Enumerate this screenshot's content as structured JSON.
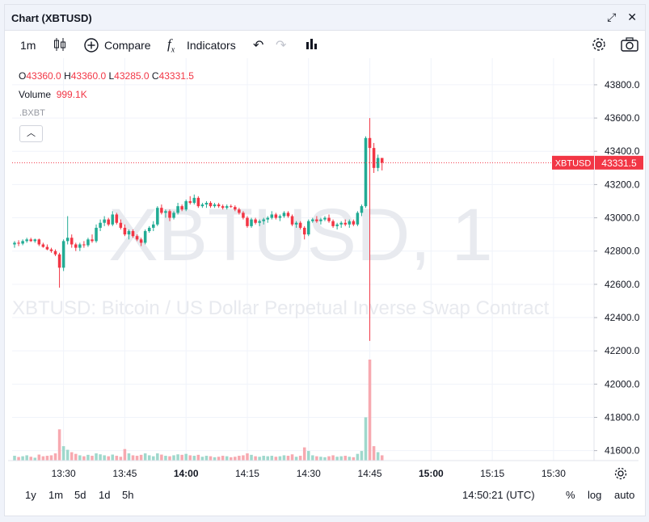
{
  "window": {
    "title": "Chart (XBTUSD)"
  },
  "toolbar": {
    "interval": "1m",
    "compare_label": "Compare",
    "indicators_label": "Indicators"
  },
  "legend": {
    "o_label": "O",
    "o_value": "43360.0",
    "h_label": "H",
    "h_value": "43360.0",
    "l_label": "L",
    "l_value": "43285.0",
    "c_label": "C",
    "c_value": "43331.5",
    "volume_label": "Volume",
    "volume_value": "999.1K",
    "exchange": ".BXBT"
  },
  "watermark": {
    "symbol": "XBTUSD, 1",
    "description": "XBTUSD: Bitcoin / US Dollar Perpetual Inverse Swap Contract"
  },
  "price_tag": {
    "symbol": "XBTUSD",
    "price": "43331.5",
    "value": 43331.5
  },
  "bottom": {
    "ranges": [
      "1y",
      "1m",
      "5d",
      "1d",
      "5h"
    ],
    "clock": "14:50:21 (UTC)",
    "percent": "%",
    "log": "log",
    "auto": "auto"
  },
  "colors": {
    "up": "#22ab94",
    "down": "#f23645",
    "up_vol": "#9fd8cc",
    "down_vol": "#f7a9b0",
    "accent": "#f23645"
  },
  "chart_data": {
    "type": "candlestick",
    "y_ticks": [
      41600,
      41800,
      42000,
      42200,
      42400,
      42600,
      42800,
      43000,
      43200,
      43400,
      43600,
      43800
    ],
    "y_tick_labels": [
      "41600.0",
      "41800.0",
      "42000.0",
      "42200.0",
      "42400.0",
      "42600.0",
      "42800.0",
      "43000.0",
      "43200.0",
      "43400.0",
      "43600.0",
      "43800.0"
    ],
    "ylim": [
      41540,
      43960
    ],
    "x_ticks": [
      "13:30",
      "13:45",
      "14:00",
      "14:15",
      "14:30",
      "14:45",
      "15:00",
      "15:15",
      "15:30"
    ],
    "x_tick_minutes": [
      810,
      825,
      840,
      855,
      870,
      885,
      900,
      915,
      930
    ],
    "xlim_minutes": [
      798,
      932
    ],
    "candles": [
      {
        "t": 798,
        "o": 42840,
        "h": 42860,
        "l": 42820,
        "c": 42850,
        "v": 20
      },
      {
        "t": 799,
        "o": 42850,
        "h": 42865,
        "l": 42830,
        "c": 42845,
        "v": 15
      },
      {
        "t": 800,
        "o": 42845,
        "h": 42870,
        "l": 42835,
        "c": 42860,
        "v": 18
      },
      {
        "t": 801,
        "o": 42860,
        "h": 42880,
        "l": 42850,
        "c": 42870,
        "v": 22
      },
      {
        "t": 802,
        "o": 42870,
        "h": 42880,
        "l": 42855,
        "c": 42860,
        "v": 16
      },
      {
        "t": 803,
        "o": 42860,
        "h": 42875,
        "l": 42850,
        "c": 42870,
        "v": 12
      },
      {
        "t": 804,
        "o": 42870,
        "h": 42875,
        "l": 42830,
        "c": 42840,
        "v": 25
      },
      {
        "t": 805,
        "o": 42840,
        "h": 42850,
        "l": 42820,
        "c": 42825,
        "v": 18
      },
      {
        "t": 806,
        "o": 42825,
        "h": 42840,
        "l": 42805,
        "c": 42810,
        "v": 20
      },
      {
        "t": 807,
        "o": 42810,
        "h": 42820,
        "l": 42790,
        "c": 42800,
        "v": 22
      },
      {
        "t": 808,
        "o": 42800,
        "h": 42810,
        "l": 42770,
        "c": 42780,
        "v": 30
      },
      {
        "t": 809,
        "o": 42780,
        "h": 42790,
        "l": 42580,
        "c": 42700,
        "v": 130
      },
      {
        "t": 810,
        "o": 42700,
        "h": 42870,
        "l": 42680,
        "c": 42860,
        "v": 60
      },
      {
        "t": 811,
        "o": 42860,
        "h": 43010,
        "l": 42840,
        "c": 42880,
        "v": 45
      },
      {
        "t": 812,
        "o": 42880,
        "h": 42900,
        "l": 42820,
        "c": 42840,
        "v": 35
      },
      {
        "t": 813,
        "o": 42840,
        "h": 42850,
        "l": 42800,
        "c": 42820,
        "v": 28
      },
      {
        "t": 814,
        "o": 42820,
        "h": 42850,
        "l": 42800,
        "c": 42840,
        "v": 22
      },
      {
        "t": 815,
        "o": 42840,
        "h": 42860,
        "l": 42820,
        "c": 42835,
        "v": 18
      },
      {
        "t": 816,
        "o": 42835,
        "h": 42880,
        "l": 42825,
        "c": 42870,
        "v": 24
      },
      {
        "t": 817,
        "o": 42870,
        "h": 42900,
        "l": 42850,
        "c": 42860,
        "v": 20
      },
      {
        "t": 818,
        "o": 42860,
        "h": 42960,
        "l": 42850,
        "c": 42940,
        "v": 30
      },
      {
        "t": 819,
        "o": 42940,
        "h": 42990,
        "l": 42920,
        "c": 42970,
        "v": 26
      },
      {
        "t": 820,
        "o": 42970,
        "h": 43010,
        "l": 42950,
        "c": 42990,
        "v": 22
      },
      {
        "t": 821,
        "o": 42990,
        "h": 43000,
        "l": 42950,
        "c": 42960,
        "v": 18
      },
      {
        "t": 822,
        "o": 42960,
        "h": 43040,
        "l": 42950,
        "c": 43020,
        "v": 25
      },
      {
        "t": 823,
        "o": 43020,
        "h": 43030,
        "l": 42960,
        "c": 42970,
        "v": 20
      },
      {
        "t": 824,
        "o": 42970,
        "h": 42990,
        "l": 42930,
        "c": 42940,
        "v": 16
      },
      {
        "t": 825,
        "o": 42940,
        "h": 42960,
        "l": 42890,
        "c": 42900,
        "v": 48
      },
      {
        "t": 826,
        "o": 42900,
        "h": 42930,
        "l": 42870,
        "c": 42920,
        "v": 30
      },
      {
        "t": 827,
        "o": 42920,
        "h": 42930,
        "l": 42880,
        "c": 42890,
        "v": 22
      },
      {
        "t": 828,
        "o": 42890,
        "h": 42900,
        "l": 42860,
        "c": 42870,
        "v": 20
      },
      {
        "t": 829,
        "o": 42870,
        "h": 42880,
        "l": 42830,
        "c": 42850,
        "v": 24
      },
      {
        "t": 830,
        "o": 42850,
        "h": 42930,
        "l": 42840,
        "c": 42920,
        "v": 30
      },
      {
        "t": 831,
        "o": 42920,
        "h": 42950,
        "l": 42910,
        "c": 42940,
        "v": 22
      },
      {
        "t": 832,
        "o": 42940,
        "h": 42980,
        "l": 42920,
        "c": 42960,
        "v": 18
      },
      {
        "t": 833,
        "o": 42960,
        "h": 43070,
        "l": 42950,
        "c": 43060,
        "v": 30
      },
      {
        "t": 834,
        "o": 43060,
        "h": 43080,
        "l": 43020,
        "c": 43030,
        "v": 25
      },
      {
        "t": 835,
        "o": 43030,
        "h": 43050,
        "l": 43000,
        "c": 43040,
        "v": 20
      },
      {
        "t": 836,
        "o": 43040,
        "h": 43050,
        "l": 42980,
        "c": 43000,
        "v": 18
      },
      {
        "t": 837,
        "o": 43000,
        "h": 43040,
        "l": 42990,
        "c": 43030,
        "v": 22
      },
      {
        "t": 838,
        "o": 43030,
        "h": 43090,
        "l": 43020,
        "c": 43070,
        "v": 26
      },
      {
        "t": 839,
        "o": 43070,
        "h": 43080,
        "l": 43040,
        "c": 43050,
        "v": 24
      },
      {
        "t": 840,
        "o": 43050,
        "h": 43110,
        "l": 43040,
        "c": 43100,
        "v": 28
      },
      {
        "t": 841,
        "o": 43100,
        "h": 43130,
        "l": 43080,
        "c": 43090,
        "v": 22
      },
      {
        "t": 842,
        "o": 43090,
        "h": 43140,
        "l": 43080,
        "c": 43120,
        "v": 20
      },
      {
        "t": 843,
        "o": 43120,
        "h": 43130,
        "l": 43060,
        "c": 43070,
        "v": 24
      },
      {
        "t": 844,
        "o": 43070,
        "h": 43090,
        "l": 43060,
        "c": 43080,
        "v": 16
      },
      {
        "t": 845,
        "o": 43080,
        "h": 43100,
        "l": 43060,
        "c": 43090,
        "v": 20
      },
      {
        "t": 846,
        "o": 43090,
        "h": 43100,
        "l": 43060,
        "c": 43070,
        "v": 18
      },
      {
        "t": 847,
        "o": 43070,
        "h": 43090,
        "l": 43060,
        "c": 43080,
        "v": 14
      },
      {
        "t": 848,
        "o": 43080,
        "h": 43090,
        "l": 43060,
        "c": 43070,
        "v": 16
      },
      {
        "t": 849,
        "o": 43070,
        "h": 43080,
        "l": 43050,
        "c": 43060,
        "v": 20
      },
      {
        "t": 850,
        "o": 43060,
        "h": 43080,
        "l": 43050,
        "c": 43070,
        "v": 18
      },
      {
        "t": 851,
        "o": 43070,
        "h": 43080,
        "l": 43060,
        "c": 43065,
        "v": 14
      },
      {
        "t": 852,
        "o": 43065,
        "h": 43075,
        "l": 43040,
        "c": 43050,
        "v": 16
      },
      {
        "t": 853,
        "o": 43050,
        "h": 43060,
        "l": 43020,
        "c": 43030,
        "v": 20
      },
      {
        "t": 854,
        "o": 43030,
        "h": 43040,
        "l": 42990,
        "c": 43000,
        "v": 22
      },
      {
        "t": 855,
        "o": 43000,
        "h": 43010,
        "l": 42940,
        "c": 42950,
        "v": 30
      },
      {
        "t": 856,
        "o": 42950,
        "h": 43000,
        "l": 42940,
        "c": 42990,
        "v": 24
      },
      {
        "t": 857,
        "o": 42990,
        "h": 43000,
        "l": 42960,
        "c": 42970,
        "v": 18
      },
      {
        "t": 858,
        "o": 42970,
        "h": 42990,
        "l": 42950,
        "c": 42980,
        "v": 16
      },
      {
        "t": 859,
        "o": 42980,
        "h": 43000,
        "l": 42960,
        "c": 42990,
        "v": 20
      },
      {
        "t": 860,
        "o": 42990,
        "h": 43010,
        "l": 42970,
        "c": 43000,
        "v": 18
      },
      {
        "t": 861,
        "o": 43000,
        "h": 43040,
        "l": 42990,
        "c": 43020,
        "v": 20
      },
      {
        "t": 862,
        "o": 43020,
        "h": 43030,
        "l": 42990,
        "c": 43000,
        "v": 16
      },
      {
        "t": 863,
        "o": 43000,
        "h": 43020,
        "l": 42980,
        "c": 43010,
        "v": 18
      },
      {
        "t": 864,
        "o": 43010,
        "h": 43040,
        "l": 43000,
        "c": 43030,
        "v": 22
      },
      {
        "t": 865,
        "o": 43030,
        "h": 43040,
        "l": 43000,
        "c": 43010,
        "v": 20
      },
      {
        "t": 866,
        "o": 43010,
        "h": 43020,
        "l": 42950,
        "c": 42960,
        "v": 26
      },
      {
        "t": 867,
        "o": 42960,
        "h": 42980,
        "l": 42940,
        "c": 42970,
        "v": 16
      },
      {
        "t": 868,
        "o": 42970,
        "h": 42980,
        "l": 42930,
        "c": 42940,
        "v": 20
      },
      {
        "t": 869,
        "o": 42940,
        "h": 42950,
        "l": 42870,
        "c": 42900,
        "v": 55
      },
      {
        "t": 870,
        "o": 42900,
        "h": 42990,
        "l": 42890,
        "c": 42980,
        "v": 40
      },
      {
        "t": 871,
        "o": 42980,
        "h": 43000,
        "l": 42970,
        "c": 42990,
        "v": 22
      },
      {
        "t": 872,
        "o": 42990,
        "h": 43010,
        "l": 42970,
        "c": 42980,
        "v": 18
      },
      {
        "t": 873,
        "o": 42980,
        "h": 43000,
        "l": 42960,
        "c": 42990,
        "v": 16
      },
      {
        "t": 874,
        "o": 42990,
        "h": 43010,
        "l": 42980,
        "c": 43000,
        "v": 14
      },
      {
        "t": 875,
        "o": 43000,
        "h": 43020,
        "l": 42970,
        "c": 42980,
        "v": 18
      },
      {
        "t": 876,
        "o": 42980,
        "h": 42990,
        "l": 42940,
        "c": 42950,
        "v": 22
      },
      {
        "t": 877,
        "o": 42950,
        "h": 42970,
        "l": 42930,
        "c": 42960,
        "v": 16
      },
      {
        "t": 878,
        "o": 42960,
        "h": 42980,
        "l": 42940,
        "c": 42970,
        "v": 18
      },
      {
        "t": 879,
        "o": 42970,
        "h": 42990,
        "l": 42950,
        "c": 42960,
        "v": 20
      },
      {
        "t": 880,
        "o": 42960,
        "h": 42990,
        "l": 42940,
        "c": 42980,
        "v": 16
      },
      {
        "t": 881,
        "o": 42980,
        "h": 42990,
        "l": 42950,
        "c": 42960,
        "v": 14
      },
      {
        "t": 882,
        "o": 42960,
        "h": 43040,
        "l": 42950,
        "c": 43030,
        "v": 28
      },
      {
        "t": 883,
        "o": 43030,
        "h": 43080,
        "l": 43010,
        "c": 43070,
        "v": 40
      },
      {
        "t": 884,
        "o": 43070,
        "h": 43490,
        "l": 43060,
        "c": 43480,
        "v": 180
      },
      {
        "t": 885,
        "o": 43480,
        "h": 43600,
        "l": 42260,
        "c": 43420,
        "v": 420
      },
      {
        "t": 886,
        "o": 43420,
        "h": 43450,
        "l": 43270,
        "c": 43300,
        "v": 60
      },
      {
        "t": 887,
        "o": 43300,
        "h": 43380,
        "l": 43280,
        "c": 43360,
        "v": 35
      },
      {
        "t": 888,
        "o": 43360,
        "h": 43360,
        "l": 43285,
        "c": 43331.5,
        "v": 22
      }
    ]
  }
}
